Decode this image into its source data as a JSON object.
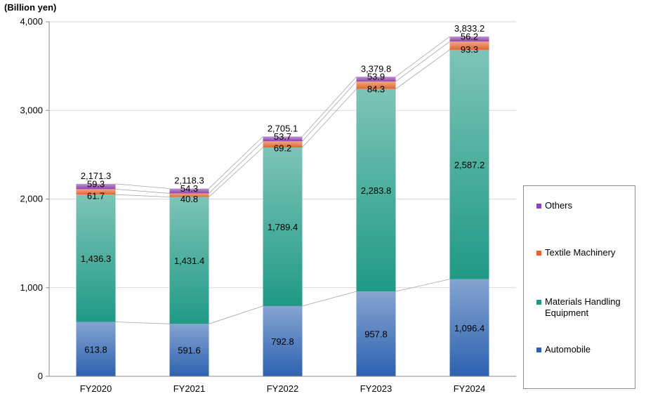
{
  "chart_data": {
    "type": "bar",
    "stacked": true,
    "unit": "(Billion yen)",
    "categories": [
      "FY2020",
      "FY2021",
      "FY2022",
      "FY2023",
      "FY2024"
    ],
    "series": [
      {
        "name": "Automobile",
        "values": [
          613.8,
          591.6,
          792.8,
          957.8,
          1096.4
        ],
        "labels": [
          "613.8",
          "591.6",
          "792.8",
          "957.8",
          "1,096.4"
        ],
        "color": "#2d62b0"
      },
      {
        "name": "Materials Handling Equipment",
        "values": [
          1436.3,
          1431.4,
          1789.4,
          2283.8,
          2587.2
        ],
        "labels": [
          "1,436.3",
          "1,431.4",
          "1,789.4",
          "2,283.8",
          "2,587.2"
        ],
        "color": "#1f9a85"
      },
      {
        "name": "Textile Machinery",
        "values": [
          61.7,
          40.8,
          69.2,
          84.3,
          93.3
        ],
        "labels": [
          "61.7",
          "40.8",
          "69.2",
          "84.3",
          "93.3"
        ],
        "color": "#e2662f"
      },
      {
        "name": "Others",
        "values": [
          59.3,
          54.3,
          53.7,
          53.9,
          56.2
        ],
        "labels": [
          "59.3",
          "54.3",
          "53.7",
          "53.9",
          "56.2"
        ],
        "color": "#8e44ad"
      }
    ],
    "totals": [
      2171.3,
      2118.3,
      2705.1,
      3379.8,
      3833.2
    ],
    "total_labels": [
      "2,171.3",
      "2,118.3",
      "2,705.1",
      "3,379.8",
      "3,833.2"
    ],
    "ylim": [
      0,
      4000
    ],
    "yticks": [
      0,
      1000,
      2000,
      3000,
      4000
    ],
    "ytick_labels": [
      "0",
      "1,000",
      "2,000",
      "3,000",
      "4,000"
    ],
    "grid": true,
    "legend_position": "right",
    "legend_order": [
      "Others",
      "Textile Machinery",
      "Materials Handling Equipment",
      "Automobile"
    ]
  }
}
